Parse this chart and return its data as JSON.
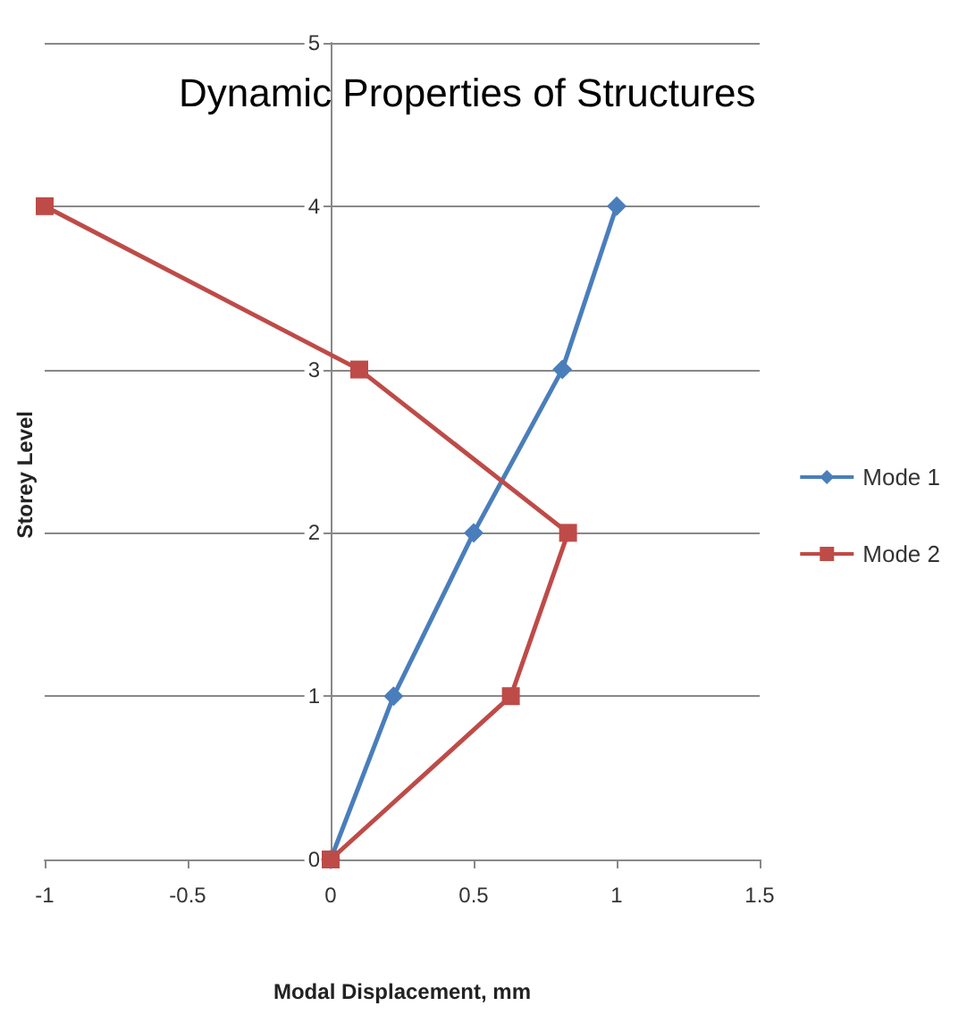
{
  "chart_data": {
    "type": "line",
    "title": "Dynamic Properties of Structures",
    "xlabel": "Modal Displacement, mm",
    "ylabel": "Storey Level",
    "series": [
      {
        "name": "Mode 1",
        "color": "#4a7ebb",
        "marker": "diamond",
        "x": [
          0,
          0.22,
          0.5,
          0.81,
          1
        ],
        "values": [
          0,
          1,
          2,
          3,
          4
        ]
      },
      {
        "name": "Mode 2",
        "color": "#be4b48",
        "marker": "square",
        "x": [
          0,
          0.63,
          0.83,
          0.1,
          -1
        ],
        "values": [
          0,
          1,
          2,
          3,
          4
        ]
      }
    ],
    "xlim": [
      -1,
      1.5
    ],
    "xticks": [
      -1,
      -0.5,
      0,
      0.5,
      1,
      1.5
    ],
    "ylim": [
      0,
      5
    ],
    "yticks": [
      0,
      1,
      2,
      3,
      4,
      5
    ],
    "grid": "y",
    "legend": "right"
  }
}
